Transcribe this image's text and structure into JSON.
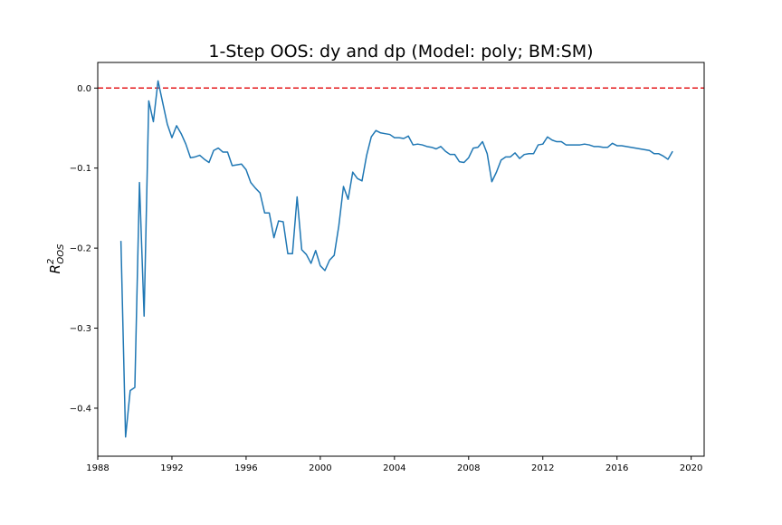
{
  "chart_data": {
    "type": "line",
    "title": "1-Step OOS: dy and dp (Model: poly; BM:SM)",
    "xlabel": "",
    "ylabel": "R",
    "ylabel_superscript": "2",
    "ylabel_subscript": "OOS",
    "xlim": [
      1988,
      2020.7
    ],
    "ylim": [
      -0.46,
      0.032
    ],
    "xticks": [
      1988,
      1992,
      1996,
      2000,
      2004,
      2008,
      2012,
      2016,
      2020
    ],
    "xtick_labels": [
      "1988",
      "1992",
      "1996",
      "2000",
      "2004",
      "2008",
      "2012",
      "2016",
      "2020"
    ],
    "yticks": [
      0.0,
      -0.1,
      -0.2,
      -0.3,
      -0.4
    ],
    "ytick_labels": [
      "0.0",
      "−0.1",
      "−0.2",
      "−0.3",
      "−0.4"
    ],
    "grid": false,
    "reference_line": {
      "y": 0.0,
      "style": "dashed",
      "color": "#e41a1c"
    },
    "series_color": "#1f77b4",
    "series": [
      {
        "x": [
          1989.25,
          1989.5,
          1989.75,
          1990.0,
          1990.25,
          1990.5,
          1990.75,
          1991.0,
          1991.25,
          1991.5,
          1991.75,
          1992.0,
          1992.25,
          1992.5,
          1992.75,
          1993.0,
          1993.25,
          1993.5,
          1993.75,
          1994.0,
          1994.25,
          1994.5,
          1994.75,
          1995.0,
          1995.25,
          1995.5,
          1995.75,
          1996.0,
          1996.25,
          1996.5,
          1996.75,
          1997.0,
          1997.25,
          1997.5,
          1997.75,
          1998.0,
          1998.25,
          1998.5,
          1998.75,
          1999.0,
          1999.25,
          1999.5,
          1999.75,
          2000.0,
          2000.25,
          2000.5,
          2000.75,
          2001.0,
          2001.25,
          2001.5,
          2001.75,
          2002.0,
          2002.25,
          2002.5,
          2002.75,
          2003.0,
          2003.25,
          2003.5,
          2003.75,
          2004.0,
          2004.25,
          2004.5,
          2004.75,
          2005.0,
          2005.25,
          2005.5,
          2005.75,
          2006.0,
          2006.25,
          2006.5,
          2006.75,
          2007.0,
          2007.25,
          2007.5,
          2007.75,
          2008.0,
          2008.25,
          2008.5,
          2008.75,
          2009.0,
          2009.25,
          2009.5,
          2009.75,
          2010.0,
          2010.25,
          2010.5,
          2010.75,
          2011.0,
          2011.25,
          2011.5,
          2011.75,
          2012.0,
          2012.25,
          2012.5,
          2012.75,
          2013.0,
          2013.25,
          2013.5,
          2013.75,
          2014.0,
          2014.25,
          2014.5,
          2014.75,
          2015.0,
          2015.25,
          2015.5,
          2015.75,
          2016.0,
          2016.25,
          2016.5,
          2016.75,
          2017.0,
          2017.25,
          2017.5,
          2017.75,
          2018.0,
          2018.25,
          2018.5,
          2018.75,
          2019.0
        ],
        "y": [
          -0.191,
          -0.436,
          -0.378,
          -0.374,
          -0.118,
          -0.285,
          -0.016,
          -0.042,
          0.009,
          -0.018,
          -0.045,
          -0.062,
          -0.047,
          -0.057,
          -0.07,
          -0.087,
          -0.086,
          -0.084,
          -0.089,
          -0.093,
          -0.078,
          -0.075,
          -0.08,
          -0.08,
          -0.097,
          -0.096,
          -0.095,
          -0.102,
          -0.118,
          -0.125,
          -0.131,
          -0.156,
          -0.156,
          -0.187,
          -0.166,
          -0.167,
          -0.207,
          -0.207,
          -0.136,
          -0.202,
          -0.208,
          -0.219,
          -0.203,
          -0.222,
          -0.228,
          -0.215,
          -0.209,
          -0.172,
          -0.123,
          -0.139,
          -0.105,
          -0.113,
          -0.116,
          -0.084,
          -0.061,
          -0.053,
          -0.056,
          -0.057,
          -0.058,
          -0.062,
          -0.062,
          -0.063,
          -0.06,
          -0.071,
          -0.07,
          -0.071,
          -0.073,
          -0.074,
          -0.076,
          -0.073,
          -0.079,
          -0.083,
          -0.083,
          -0.092,
          -0.093,
          -0.087,
          -0.075,
          -0.074,
          -0.067,
          -0.082,
          -0.117,
          -0.105,
          -0.09,
          -0.086,
          -0.086,
          -0.081,
          -0.088,
          -0.083,
          -0.082,
          -0.082,
          -0.071,
          -0.07,
          -0.061,
          -0.065,
          -0.067,
          -0.067,
          -0.071,
          -0.071,
          -0.071,
          -0.071,
          -0.07,
          -0.071,
          -0.073,
          -0.073,
          -0.074,
          -0.074,
          -0.069,
          -0.072,
          -0.072,
          -0.073,
          -0.074,
          -0.075,
          -0.076,
          -0.077,
          -0.078,
          -0.082,
          -0.082,
          -0.085,
          -0.089,
          -0.079
        ]
      }
    ]
  }
}
